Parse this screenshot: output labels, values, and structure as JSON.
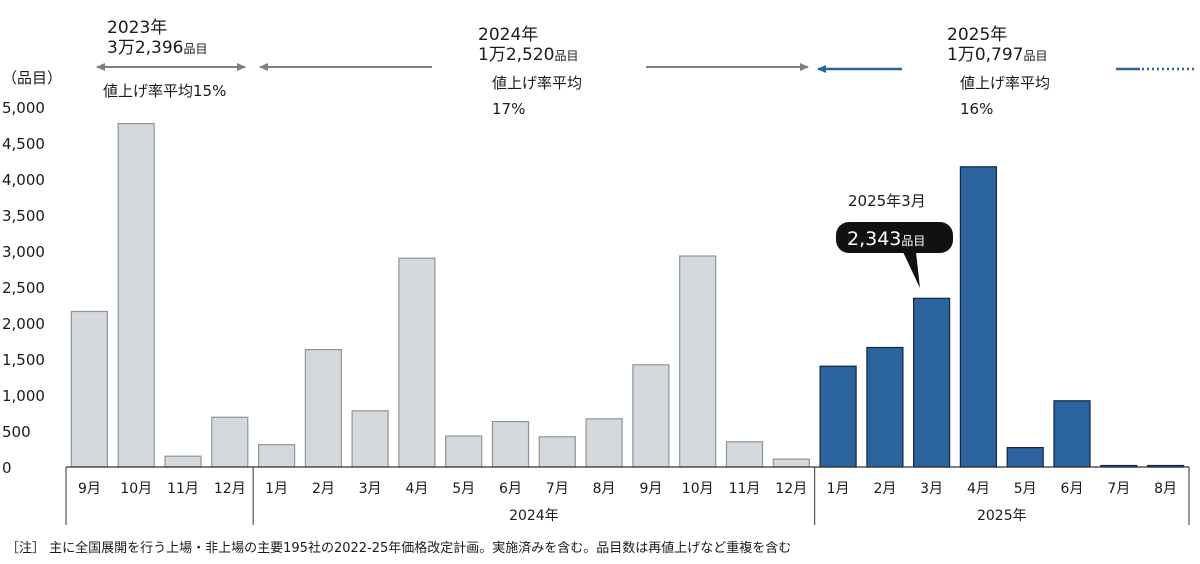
{
  "chart_data": {
    "type": "bar",
    "ylabel": "（品目）",
    "ylim": [
      0,
      5000
    ],
    "yticks": [
      0,
      500,
      1000,
      1500,
      2000,
      2500,
      3000,
      3500,
      4000,
      4500,
      5000
    ],
    "ytick_labels": [
      "0",
      "500",
      "1,000",
      "1,500",
      "2,000",
      "2,500",
      "3,000",
      "3,500",
      "4,000",
      "4,500",
      "5,000"
    ],
    "grid": false,
    "categories": [
      "9月",
      "10月",
      "11月",
      "12月",
      "1月",
      "2月",
      "3月",
      "4月",
      "5月",
      "6月",
      "7月",
      "8月",
      "9月",
      "10月",
      "11月",
      "12月",
      "1月",
      "2月",
      "3月",
      "4月",
      "5月",
      "6月",
      "7月",
      "8月"
    ],
    "values": [
      2160,
      4770,
      150,
      690,
      310,
      1630,
      780,
      2900,
      430,
      630,
      420,
      670,
      1420,
      2930,
      350,
      110,
      1400,
      1660,
      2343,
      4170,
      270,
      920,
      20,
      20
    ],
    "bar_colors": {
      "past": "#d4d9dd",
      "past_border": "#8e9499",
      "current": "#2c64a0",
      "current_border": "#0d2745"
    },
    "year_groups": [
      {
        "label": "",
        "start": 0,
        "end": 3
      },
      {
        "label": "2024年",
        "start": 4,
        "end": 15
      },
      {
        "label": "2025年",
        "start": 16,
        "end": 23
      }
    ],
    "annotations": {
      "y2023": {
        "year": "2023年",
        "count": "3万2,396",
        "unit": "品目",
        "rate": "値上げ率平均15%"
      },
      "y2024": {
        "year": "2024年",
        "count": "1万2,520",
        "unit": "品目",
        "rate1": "値上げ率平均",
        "rate2": "17%"
      },
      "y2025": {
        "year": "2025年",
        "count": "1万0,797",
        "unit": "品目",
        "rate1": "値上げ率平均",
        "rate2": "16%"
      },
      "callout": {
        "title": "2025年3月",
        "value": "2,343",
        "unit": "品目"
      }
    },
    "arrow_colors": {
      "gray": "#7f7f7f",
      "blue": "#2c64a0"
    }
  },
  "note": "［注］ 主に全国展開を行う上場・非上場の主要195社の2022-25年価格改定計画。実施済みを含む。品目数は再値上げなど重複を含む"
}
